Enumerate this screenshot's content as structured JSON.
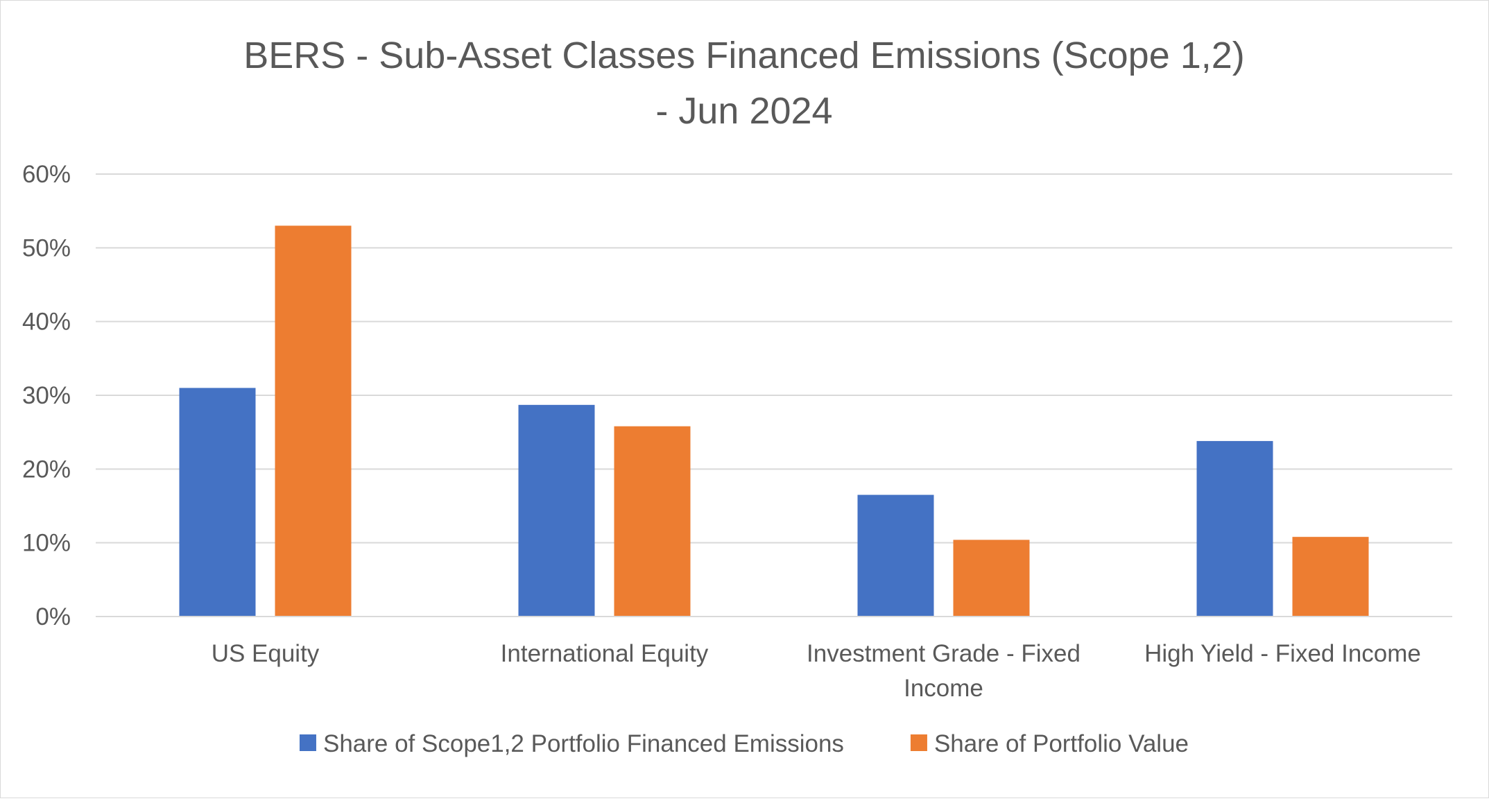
{
  "chart_data": {
    "type": "bar",
    "title_lines": [
      "BERS - Sub-Asset Classes Financed Emissions (Scope 1,2)",
      "- Jun 2024"
    ],
    "categories": [
      [
        "US Equity"
      ],
      [
        "International Equity"
      ],
      [
        "Investment Grade - Fixed",
        "Income"
      ],
      [
        "High Yield - Fixed Income"
      ]
    ],
    "series": [
      {
        "name": "Share of Scope1,2 Portfolio Financed Emissions",
        "color": "#4472C4",
        "values": [
          31,
          28.7,
          16.5,
          23.8
        ]
      },
      {
        "name": "Share of Portfolio Value",
        "color": "#ED7D31",
        "values": [
          53,
          25.8,
          10.4,
          10.8
        ]
      }
    ],
    "ylim": [
      0,
      60
    ],
    "yticks": [
      "0%",
      "10%",
      "20%",
      "30%",
      "40%",
      "50%",
      "60%"
    ],
    "grid": true,
    "legend_position": "bottom",
    "xlabel": "",
    "ylabel": ""
  }
}
